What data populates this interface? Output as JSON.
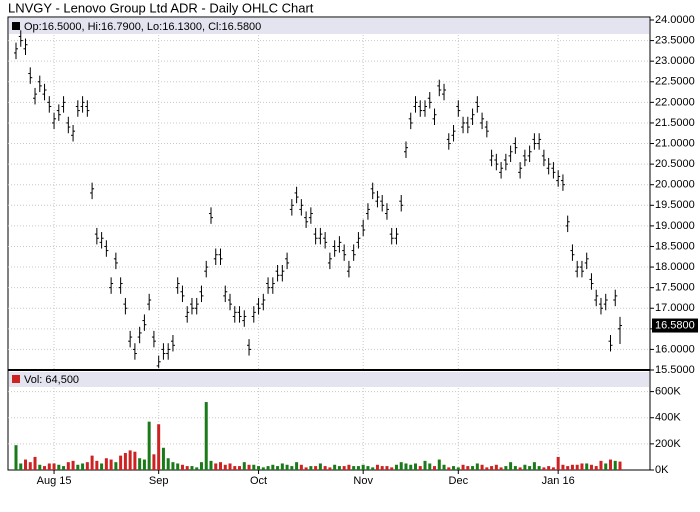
{
  "chart_data": {
    "type": "ohlc",
    "title": "LNVGY - Lenovo Group Ltd ADR - Daily OHLC Chart",
    "legend_text": "Op:16.5000, Hi:16.7900, Lo:16.1300, Cl:16.5800",
    "volume_legend": "Vol: 64,500",
    "last_price_label": "16.5800",
    "categories": [
      null,
      null,
      null,
      null,
      null,
      null,
      null,
      null,
      "Aug 15",
      null,
      null,
      null,
      null,
      null,
      null,
      null,
      null,
      null,
      null,
      null,
      null,
      null,
      null,
      null,
      null,
      null,
      null,
      null,
      null,
      null,
      "Sep",
      null,
      null,
      null,
      null,
      null,
      null,
      null,
      null,
      null,
      null,
      null,
      null,
      null,
      null,
      null,
      null,
      null,
      null,
      null,
      null,
      "Oct",
      null,
      null,
      null,
      null,
      null,
      null,
      null,
      null,
      null,
      null,
      null,
      null,
      null,
      null,
      null,
      null,
      null,
      null,
      null,
      null,
      null,
      "Nov",
      null,
      null,
      null,
      null,
      null,
      null,
      null,
      null,
      null,
      null,
      null,
      null,
      null,
      null,
      null,
      null,
      null,
      null,
      null,
      "Dec",
      null,
      null,
      null,
      null,
      null,
      null,
      null,
      null,
      null,
      null,
      null,
      null,
      null,
      null,
      null,
      null,
      null,
      null,
      null,
      null,
      "Jan 16",
      null,
      null,
      null,
      null,
      null,
      null,
      null,
      null,
      null,
      null,
      null,
      null,
      null
    ],
    "open": [
      23.2,
      23.6,
      23.3,
      22.7,
      22.1,
      22.5,
      22.2,
      22.0,
      21.5,
      21.8,
      21.9,
      21.5,
      21.2,
      21.9,
      21.9,
      21.9,
      19.8,
      18.8,
      18.6,
      18.5,
      17.5,
      18.2,
      17.5,
      17.1,
      16.2,
      16.0,
      16.3,
      16.7,
      17.1,
      16.3,
      15.6,
      16.0,
      15.9,
      16.2,
      17.5,
      17.4,
      16.8,
      17.1,
      17.0,
      17.4,
      17.9,
      19.3,
      18.2,
      18.3,
      17.3,
      17.2,
      16.8,
      16.9,
      16.7,
      16.1,
      16.8,
      17.1,
      17.1,
      17.6,
      17.5,
      17.9,
      17.8,
      18.2,
      19.4,
      19.8,
      19.4,
      19.2,
      19.2,
      18.8,
      18.7,
      18.7,
      18.1,
      18.5,
      18.5,
      18.4,
      17.9,
      18.4,
      18.6,
      19.0,
      19.3,
      19.9,
      19.6,
      19.6,
      19.3,
      18.8,
      18.7,
      19.6,
      20.8,
      21.6,
      21.9,
      21.9,
      21.8,
      22.1,
      21.6,
      22.4,
      22.2,
      21.1,
      21.2,
      21.9,
      21.4,
      21.5,
      21.6,
      22.0,
      21.5,
      21.4,
      20.6,
      20.6,
      20.3,
      20.6,
      20.7,
      21.0,
      20.3,
      20.7,
      20.7,
      21.1,
      21.0,
      20.7,
      20.4,
      20.4,
      20.1,
      20.1,
      19.0,
      18.4,
      17.9,
      18.0,
      18.1,
      17.7,
      17.2,
      17.1,
      17.1,
      16.2,
      17.2,
      16.5
    ],
    "high": [
      23.45,
      23.75,
      23.55,
      22.85,
      22.35,
      22.65,
      22.45,
      22.15,
      21.75,
      21.95,
      22.15,
      21.65,
      21.45,
      22.05,
      22.15,
      22.05,
      20.05,
      18.95,
      18.85,
      18.65,
      17.75,
      18.35,
      17.75,
      17.25,
      16.45,
      16.15,
      16.55,
      16.85,
      17.35,
      16.45,
      15.85,
      16.15,
      16.15,
      16.35,
      17.75,
      17.55,
      17.05,
      17.25,
      17.25,
      17.55,
      18.15,
      19.45,
      18.45,
      18.45,
      17.55,
      17.35,
      17.05,
      17.05,
      16.95,
      16.25,
      17.05,
      17.25,
      17.35,
      17.75,
      17.75,
      18.05,
      18.05,
      18.35,
      19.65,
      19.95,
      19.65,
      19.35,
      19.45,
      18.95,
      18.95,
      18.85,
      18.35,
      18.65,
      18.75,
      18.55,
      18.15,
      18.55,
      18.85,
      19.15,
      19.55,
      20.05,
      19.85,
      19.75,
      19.55,
      18.95,
      18.95,
      19.75,
      21.05,
      21.75,
      22.15,
      22.05,
      22.05,
      22.25,
      21.85,
      22.55,
      22.45,
      21.25,
      21.45,
      22.05,
      21.65,
      21.65,
      21.85,
      22.15,
      21.75,
      21.55,
      20.85,
      20.75,
      20.55,
      20.75,
      20.95,
      21.15,
      20.55,
      20.85,
      20.95,
      21.25,
      21.25,
      20.85,
      20.65,
      20.55,
      20.35,
      20.25,
      19.25,
      18.55,
      18.15,
      18.15,
      18.35,
      17.85,
      17.45,
      17.25,
      17.35,
      16.35,
      17.45,
      16.79
    ],
    "low": [
      23.05,
      23.35,
      23.15,
      22.45,
      21.95,
      22.25,
      22.05,
      21.75,
      21.35,
      21.55,
      21.75,
      21.25,
      21.05,
      21.65,
      21.75,
      21.65,
      19.65,
      18.55,
      18.45,
      18.25,
      17.35,
      17.95,
      17.35,
      16.85,
      16.05,
      15.75,
      16.15,
      16.45,
      16.95,
      16.05,
      15.55,
      15.75,
      15.75,
      15.95,
      17.35,
      17.15,
      16.65,
      16.85,
      16.85,
      17.15,
      17.75,
      19.05,
      18.05,
      18.05,
      17.15,
      16.95,
      16.65,
      16.65,
      16.55,
      15.85,
      16.65,
      16.85,
      16.95,
      17.35,
      17.35,
      17.65,
      17.65,
      17.95,
      19.25,
      19.55,
      19.25,
      18.95,
      19.05,
      18.55,
      18.55,
      18.45,
      17.95,
      18.25,
      18.35,
      18.15,
      17.75,
      18.15,
      18.45,
      18.75,
      19.15,
      19.65,
      19.45,
      19.35,
      19.15,
      18.55,
      18.55,
      19.35,
      20.65,
      21.35,
      21.75,
      21.65,
      21.65,
      21.85,
      21.45,
      22.15,
      22.05,
      20.85,
      21.05,
      21.65,
      21.25,
      21.25,
      21.45,
      21.75,
      21.35,
      21.15,
      20.45,
      20.35,
      20.15,
      20.35,
      20.55,
      20.75,
      20.15,
      20.45,
      20.55,
      20.85,
      20.85,
      20.45,
      20.25,
      20.15,
      19.95,
      19.85,
      18.85,
      18.15,
      17.75,
      17.75,
      17.95,
      17.45,
      17.05,
      16.85,
      16.95,
      15.95,
      17.05,
      16.13
    ],
    "close": [
      23.3,
      23.5,
      23.4,
      22.6,
      22.2,
      22.4,
      22.3,
      21.9,
      21.6,
      21.7,
      22.0,
      21.4,
      21.3,
      21.8,
      22.0,
      21.8,
      19.9,
      18.7,
      18.7,
      18.4,
      17.6,
      18.1,
      17.6,
      17.0,
      16.3,
      15.9,
      16.4,
      16.6,
      17.2,
      16.2,
      15.7,
      15.9,
      16.0,
      16.1,
      17.6,
      17.3,
      16.9,
      17.0,
      17.1,
      17.3,
      18.0,
      19.2,
      18.3,
      18.2,
      17.4,
      17.1,
      16.9,
      16.8,
      16.8,
      16.0,
      16.9,
      17.0,
      17.2,
      17.5,
      17.6,
      17.8,
      17.9,
      18.1,
      19.5,
      19.7,
      19.5,
      19.1,
      19.3,
      18.7,
      18.8,
      18.6,
      18.2,
      18.4,
      18.6,
      18.3,
      18.0,
      18.3,
      18.7,
      18.9,
      19.4,
      19.8,
      19.7,
      19.5,
      19.4,
      18.7,
      18.8,
      19.5,
      20.9,
      21.5,
      22.0,
      21.8,
      21.9,
      22.0,
      21.7,
      22.3,
      22.3,
      21.0,
      21.3,
      21.8,
      21.5,
      21.4,
      21.7,
      21.9,
      21.6,
      21.3,
      20.7,
      20.5,
      20.4,
      20.5,
      20.8,
      20.9,
      20.4,
      20.6,
      20.8,
      21.0,
      21.1,
      20.6,
      20.5,
      20.3,
      20.2,
      20.0,
      19.1,
      18.3,
      18.0,
      17.9,
      18.2,
      17.6,
      17.3,
      17.0,
      17.2,
      16.1,
      17.3,
      16.58
    ],
    "volume": [
      190000,
      50000,
      80000,
      60000,
      100000,
      40000,
      30000,
      50000,
      50000,
      40000,
      30000,
      60000,
      70000,
      40000,
      50000,
      60000,
      110000,
      70000,
      50000,
      90000,
      80000,
      60000,
      110000,
      130000,
      150000,
      140000,
      90000,
      80000,
      370000,
      120000,
      350000,
      170000,
      90000,
      60000,
      50000,
      40000,
      30000,
      30000,
      20000,
      60000,
      520000,
      70000,
      50000,
      60000,
      40000,
      50000,
      30000,
      30000,
      60000,
      40000,
      40000,
      30000,
      20000,
      30000,
      40000,
      30000,
      50000,
      40000,
      30000,
      60000,
      40000,
      20000,
      30000,
      30000,
      50000,
      30000,
      20000,
      40000,
      30000,
      30000,
      40000,
      30000,
      30000,
      40000,
      30000,
      20000,
      40000,
      30000,
      30000,
      20000,
      40000,
      60000,
      50000,
      40000,
      50000,
      30000,
      70000,
      50000,
      30000,
      80000,
      40000,
      20000,
      30000,
      20000,
      40000,
      30000,
      30000,
      50000,
      40000,
      20000,
      30000,
      40000,
      20000,
      30000,
      60000,
      30000,
      20000,
      40000,
      30000,
      60000,
      30000,
      20000,
      30000,
      20000,
      100000,
      40000,
      30000,
      40000,
      40000,
      50000,
      50000,
      40000,
      30000,
      70000,
      50000,
      80000,
      70000,
      64500
    ],
    "bar_color": "#000000",
    "up_color": "#1a7a1a",
    "down_color": "#cc2222",
    "ylim": [
      15.5,
      24
    ],
    "yticks": [
      {
        "value": 24,
        "label": "24.0000"
      },
      {
        "value": 23.5,
        "label": "23.5000"
      },
      {
        "value": 23,
        "label": "23.0000"
      },
      {
        "value": 22.5,
        "label": "22.5000"
      },
      {
        "value": 22,
        "label": "22.0000"
      },
      {
        "value": 21.5,
        "label": "21.5000"
      },
      {
        "value": 21,
        "label": "21.0000"
      },
      {
        "value": 20.5,
        "label": "20.5000"
      },
      {
        "value": 20,
        "label": "20.0000"
      },
      {
        "value": 19.5,
        "label": "19.5000"
      },
      {
        "value": 19,
        "label": "19.0000"
      },
      {
        "value": 18.5,
        "label": "18.5000"
      },
      {
        "value": 18,
        "label": "18.0000"
      },
      {
        "value": 17.5,
        "label": "17.5000"
      },
      {
        "value": 17,
        "label": "17.0000"
      },
      {
        "value": 16.5,
        "label": "16.5000"
      },
      {
        "value": 16,
        "label": "16.0000"
      },
      {
        "value": 15.5,
        "label": "15.5000"
      }
    ],
    "y2lim": [
      0,
      750000
    ],
    "y2ticks": [
      {
        "value": 600000,
        "label": "600K"
      },
      {
        "value": 400000,
        "label": "400K"
      },
      {
        "value": 200000,
        "label": "200K"
      },
      {
        "value": 0,
        "label": "0K"
      }
    ],
    "grid": true
  }
}
